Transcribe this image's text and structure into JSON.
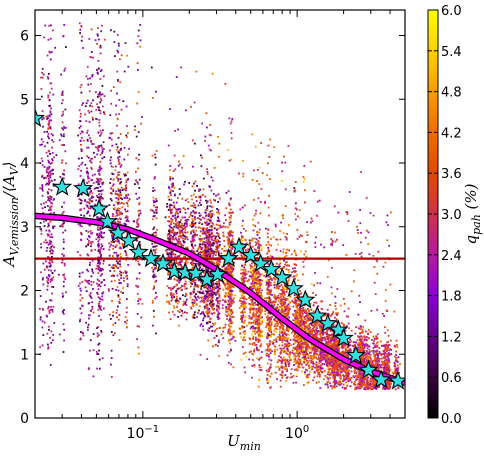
{
  "chart_data": {
    "type": "scatter",
    "title": "",
    "xlabel": "U_min",
    "ylabel": "A_V,emission/⟨A_V⟩",
    "xscale": "log",
    "xlim": [
      0.02,
      5.0
    ],
    "ylim": [
      0,
      6.4
    ],
    "x_ticks": [
      {
        "value": 0.1,
        "base": "10",
        "exp": "−1"
      },
      {
        "value": 1.0,
        "base": "10",
        "exp": "0"
      }
    ],
    "y_ticks": [
      0,
      1,
      2,
      3,
      4,
      5,
      6
    ],
    "grid": false,
    "colorbar": {
      "label": "q_pah (%)",
      "colormap": "gnuplot",
      "range": [
        0.0,
        6.0
      ],
      "ticks": [
        "0.0",
        "0.6",
        "1.2",
        "1.8",
        "2.4",
        "3.0",
        "3.6",
        "4.2",
        "4.8",
        "5.4",
        "6.0"
      ]
    },
    "reference_line": {
      "y": 2.5,
      "color": "#b00000"
    },
    "fit_curve": {
      "color": "#ff00ff",
      "points": [
        [
          0.02,
          3.17
        ],
        [
          0.03,
          3.14
        ],
        [
          0.05,
          3.07
        ],
        [
          0.08,
          2.96
        ],
        [
          0.12,
          2.8
        ],
        [
          0.2,
          2.58
        ],
        [
          0.3,
          2.33
        ],
        [
          0.5,
          1.96
        ],
        [
          0.8,
          1.56
        ],
        [
          1.2,
          1.24
        ],
        [
          2.0,
          0.92
        ],
        [
          3.0,
          0.73
        ],
        [
          5.0,
          0.55
        ]
      ]
    },
    "binned_medians": {
      "marker": "star",
      "color": "#33e0e0",
      "points": [
        [
          0.02,
          4.7
        ],
        [
          0.03,
          3.62
        ],
        [
          0.041,
          3.6
        ],
        [
          0.052,
          3.28
        ],
        [
          0.059,
          3.08
        ],
        [
          0.069,
          2.9
        ],
        [
          0.081,
          2.78
        ],
        [
          0.094,
          2.6
        ],
        [
          0.113,
          2.5
        ],
        [
          0.135,
          2.42
        ],
        [
          0.16,
          2.3
        ],
        [
          0.188,
          2.28
        ],
        [
          0.22,
          2.27
        ],
        [
          0.26,
          2.17
        ],
        [
          0.305,
          2.25
        ],
        [
          0.36,
          2.5
        ],
        [
          0.42,
          2.68
        ],
        [
          0.5,
          2.55
        ],
        [
          0.58,
          2.42
        ],
        [
          0.68,
          2.33
        ],
        [
          0.8,
          2.2
        ],
        [
          0.95,
          2.03
        ],
        [
          1.13,
          1.85
        ],
        [
          1.35,
          1.6
        ],
        [
          1.58,
          1.48
        ],
        [
          1.85,
          1.38
        ],
        [
          2.0,
          1.25
        ],
        [
          2.4,
          0.98
        ],
        [
          2.9,
          0.75
        ],
        [
          3.5,
          0.6
        ],
        [
          4.5,
          0.58
        ]
      ]
    },
    "scatter_description": {
      "n_points_rendered": 9000,
      "x_range": [
        0.02,
        5.0
      ],
      "y_range": [
        0.45,
        6.3
      ],
      "trend": "high scatter at low U_min, concentration near A_V ratio 2-3 around U_min 0.3-1, decreasing to ~0.5 at U_min 5"
    }
  }
}
